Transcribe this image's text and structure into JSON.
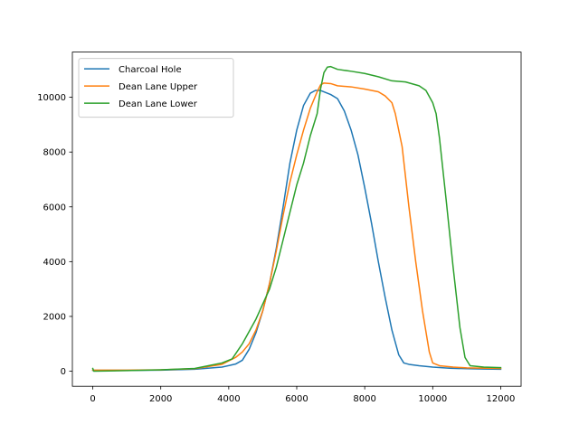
{
  "chart_data": {
    "type": "line",
    "title": "",
    "xlabel": "",
    "ylabel": "",
    "xlim": [
      -600,
      12600
    ],
    "ylim": [
      -550,
      11650
    ],
    "xticks": [
      0,
      2000,
      4000,
      6000,
      8000,
      10000,
      12000
    ],
    "yticks": [
      0,
      2000,
      4000,
      6000,
      8000,
      10000
    ],
    "grid": false,
    "legend_position": "top-left",
    "series": [
      {
        "name": "Charcoal Hole",
        "color": "#1f77b4",
        "points": [
          [
            0,
            30
          ],
          [
            1000,
            30
          ],
          [
            2000,
            40
          ],
          [
            3000,
            70
          ],
          [
            3800,
            150
          ],
          [
            4200,
            260
          ],
          [
            4400,
            400
          ],
          [
            4600,
            800
          ],
          [
            4800,
            1400
          ],
          [
            5000,
            2200
          ],
          [
            5200,
            3200
          ],
          [
            5400,
            4500
          ],
          [
            5600,
            6000
          ],
          [
            5800,
            7600
          ],
          [
            6000,
            8800
          ],
          [
            6200,
            9700
          ],
          [
            6400,
            10150
          ],
          [
            6550,
            10250
          ],
          [
            6700,
            10250
          ],
          [
            7000,
            10100
          ],
          [
            7200,
            9950
          ],
          [
            7400,
            9500
          ],
          [
            7600,
            8800
          ],
          [
            7800,
            7900
          ],
          [
            8000,
            6700
          ],
          [
            8200,
            5400
          ],
          [
            8400,
            4000
          ],
          [
            8600,
            2700
          ],
          [
            8800,
            1500
          ],
          [
            9000,
            600
          ],
          [
            9150,
            300
          ],
          [
            9300,
            250
          ],
          [
            9600,
            200
          ],
          [
            10000,
            150
          ],
          [
            10500,
            110
          ],
          [
            11000,
            90
          ],
          [
            11500,
            80
          ],
          [
            12000,
            70
          ]
        ]
      },
      {
        "name": "Dean Lane Upper",
        "color": "#ff7f0e",
        "points": [
          [
            0,
            40
          ],
          [
            1000,
            40
          ],
          [
            2000,
            50
          ],
          [
            3000,
            90
          ],
          [
            3800,
            250
          ],
          [
            4200,
            500
          ],
          [
            4400,
            700
          ],
          [
            4600,
            1000
          ],
          [
            4800,
            1500
          ],
          [
            5000,
            2200
          ],
          [
            5200,
            3200
          ],
          [
            5400,
            4400
          ],
          [
            5600,
            5700
          ],
          [
            5800,
            6900
          ],
          [
            6000,
            7900
          ],
          [
            6200,
            8800
          ],
          [
            6400,
            9600
          ],
          [
            6600,
            10200
          ],
          [
            6700,
            10450
          ],
          [
            6800,
            10520
          ],
          [
            7000,
            10500
          ],
          [
            7200,
            10420
          ],
          [
            7600,
            10380
          ],
          [
            8000,
            10300
          ],
          [
            8400,
            10200
          ],
          [
            8600,
            10050
          ],
          [
            8800,
            9800
          ],
          [
            8900,
            9400
          ],
          [
            9100,
            8200
          ],
          [
            9300,
            6000
          ],
          [
            9500,
            4000
          ],
          [
            9700,
            2200
          ],
          [
            9900,
            700
          ],
          [
            10000,
            300
          ],
          [
            10200,
            200
          ],
          [
            10600,
            150
          ],
          [
            11000,
            120
          ],
          [
            12000,
            100
          ]
        ]
      },
      {
        "name": "Dean Lane Lower",
        "color": "#2ca02c",
        "points": [
          [
            0,
            100
          ],
          [
            30,
            0
          ],
          [
            1000,
            20
          ],
          [
            2000,
            50
          ],
          [
            3000,
            100
          ],
          [
            3800,
            300
          ],
          [
            4100,
            450
          ],
          [
            4400,
            1000
          ],
          [
            4800,
            1900
          ],
          [
            5200,
            3000
          ],
          [
            5400,
            3800
          ],
          [
            5600,
            4800
          ],
          [
            5800,
            5800
          ],
          [
            6000,
            6800
          ],
          [
            6200,
            7600
          ],
          [
            6400,
            8600
          ],
          [
            6600,
            9400
          ],
          [
            6700,
            10300
          ],
          [
            6800,
            10900
          ],
          [
            6900,
            11100
          ],
          [
            7000,
            11120
          ],
          [
            7200,
            11020
          ],
          [
            7600,
            10950
          ],
          [
            8000,
            10870
          ],
          [
            8400,
            10750
          ],
          [
            8800,
            10600
          ],
          [
            9200,
            10560
          ],
          [
            9600,
            10420
          ],
          [
            9800,
            10250
          ],
          [
            10000,
            9800
          ],
          [
            10100,
            9400
          ],
          [
            10200,
            8500
          ],
          [
            10400,
            6200
          ],
          [
            10600,
            3800
          ],
          [
            10800,
            1600
          ],
          [
            10950,
            500
          ],
          [
            11100,
            200
          ],
          [
            11500,
            150
          ],
          [
            12000,
            130
          ]
        ]
      }
    ]
  }
}
